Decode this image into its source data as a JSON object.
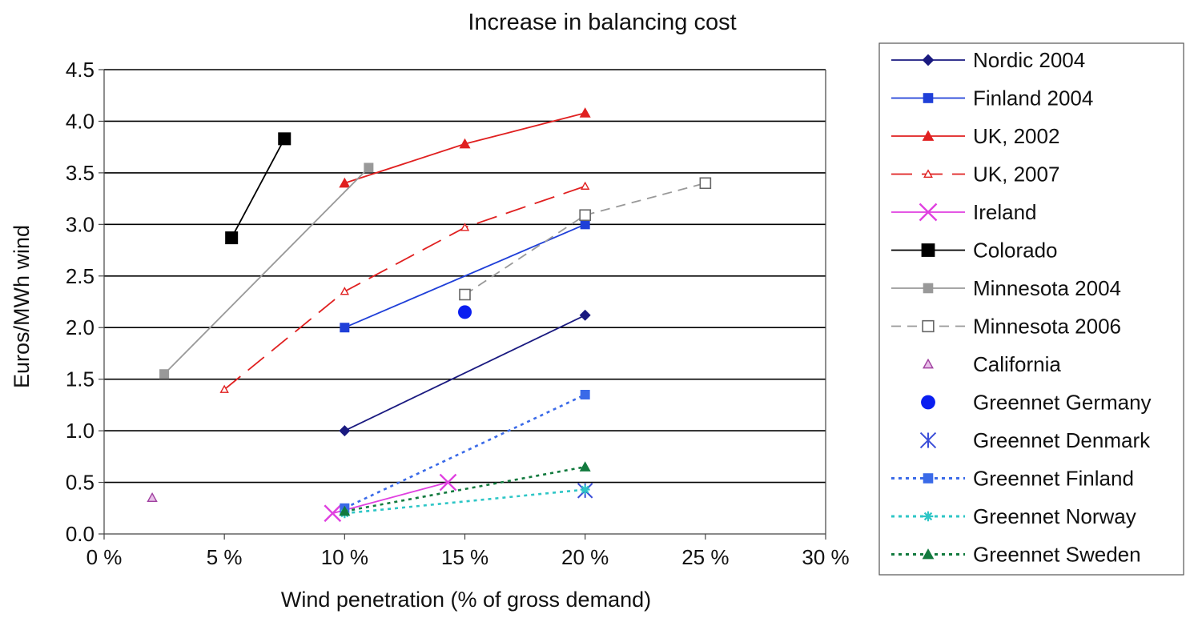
{
  "chart_data": {
    "type": "line",
    "title": "Increase in balancing cost",
    "xlabel": "Wind penetration (% of gross demand)",
    "ylabel": "Euros/MWh wind",
    "xlim": [
      0,
      30
    ],
    "ylim": [
      0,
      4.5
    ],
    "x_ticks": [
      0,
      5,
      10,
      15,
      20,
      25,
      30
    ],
    "x_tick_labels": [
      "0 %",
      "5 %",
      "10 %",
      "15 %",
      "20 %",
      "25 %",
      "30 %"
    ],
    "y_ticks": [
      0,
      0.5,
      1.0,
      1.5,
      2.0,
      2.5,
      3.0,
      3.5,
      4.0,
      4.5
    ],
    "y_tick_labels": [
      "0.0",
      "0.5",
      "1.0",
      "1.5",
      "2.0",
      "2.5",
      "3.0",
      "3.5",
      "4.0",
      "4.5"
    ],
    "grid": "horizontal",
    "legend_position": "right",
    "series": [
      {
        "name": "Nordic 2004",
        "color": "#1a1a80",
        "line": "solid",
        "marker": "diamond",
        "points": [
          [
            10,
            1.0
          ],
          [
            20,
            2.12
          ]
        ]
      },
      {
        "name": "Finland 2004",
        "color": "#1f3fd8",
        "line": "solid",
        "marker": "square",
        "points": [
          [
            10,
            2.0
          ],
          [
            20,
            3.0
          ]
        ]
      },
      {
        "name": "UK, 2002",
        "color": "#e02020",
        "line": "solid",
        "marker": "triangle",
        "points": [
          [
            10,
            3.4
          ],
          [
            15,
            3.78
          ],
          [
            20,
            4.08
          ]
        ]
      },
      {
        "name": "UK, 2007",
        "color": "#e02020",
        "line": "longdash",
        "marker": "small-triangle",
        "points": [
          [
            5,
            1.4
          ],
          [
            10,
            2.35
          ],
          [
            15,
            2.97
          ],
          [
            20,
            3.37
          ]
        ]
      },
      {
        "name": "Ireland",
        "color": "#e040e0",
        "line": "solid",
        "marker": "x",
        "points": [
          [
            9.5,
            0.2
          ],
          [
            14.3,
            0.5
          ]
        ]
      },
      {
        "name": "Colorado",
        "color": "#000000",
        "line": "solid",
        "marker": "square-large",
        "points": [
          [
            5.3,
            2.87
          ],
          [
            7.5,
            3.83
          ]
        ]
      },
      {
        "name": "Minnesota 2004",
        "color": "#999999",
        "line": "solid",
        "marker": "square",
        "points": [
          [
            2.5,
            1.55
          ],
          [
            11,
            3.55
          ]
        ]
      },
      {
        "name": "Minnesota 2006",
        "color": "#999999",
        "line": "dash",
        "marker": "open-square",
        "points": [
          [
            15,
            2.32
          ],
          [
            20,
            3.09
          ],
          [
            25,
            3.4
          ]
        ]
      },
      {
        "name": "California",
        "color": "#a040a0",
        "line": "none",
        "marker": "open-triangle",
        "points": [
          [
            2,
            0.35
          ]
        ]
      },
      {
        "name": "Greennet Germany",
        "color": "#0a1ef0",
        "line": "none",
        "marker": "circle",
        "points": [
          [
            15,
            2.15
          ]
        ]
      },
      {
        "name": "Greennet Denmark",
        "color": "#3b4ed8",
        "line": "none",
        "marker": "asterisk",
        "points": [
          [
            20,
            0.42
          ]
        ]
      },
      {
        "name": "Greennet Finland",
        "color": "#3a6ae8",
        "line": "dot",
        "marker": "square",
        "points": [
          [
            10,
            0.25
          ],
          [
            20,
            1.35
          ]
        ]
      },
      {
        "name": "Greennet Norway",
        "color": "#2ec6c6",
        "line": "dot",
        "marker": "star",
        "points": [
          [
            10,
            0.2
          ],
          [
            20,
            0.43
          ]
        ]
      },
      {
        "name": "Greennet Sweden",
        "color": "#127a3e",
        "line": "dot",
        "marker": "triangle",
        "points": [
          [
            10,
            0.22
          ],
          [
            20,
            0.65
          ]
        ]
      }
    ]
  }
}
